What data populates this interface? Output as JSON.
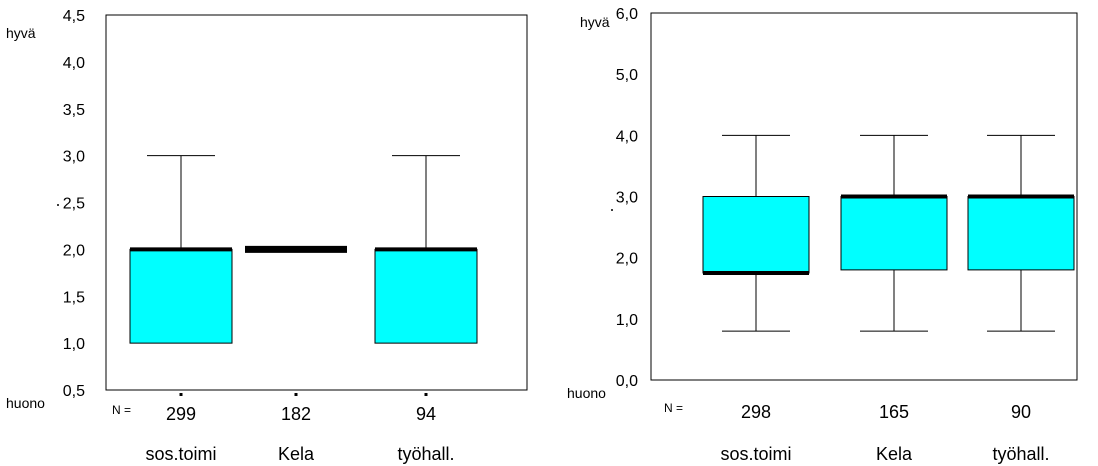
{
  "chart_data": [
    {
      "type": "boxplot",
      "top_label": "hyvä",
      "bottom_label": "huono",
      "n_label": "N =",
      "ylim": [
        0.5,
        4.5
      ],
      "yticks": [
        "0,5",
        "1,0",
        "1,5",
        "2,0",
        "2,5",
        "3,0",
        "3,5",
        "4,0",
        "4,5"
      ],
      "ytick_values": [
        0.5,
        1.0,
        1.5,
        2.0,
        2.5,
        3.0,
        3.5,
        4.0,
        4.5
      ],
      "categories": [
        "sos.toimi",
        "Kela",
        "työhall."
      ],
      "n": [
        "299",
        "182",
        "94"
      ],
      "boxes": [
        {
          "whisker_low": 1.0,
          "q1": 1.0,
          "median": 2.0,
          "q3": 2.0,
          "whisker_high": 3.0
        },
        {
          "whisker_low": 2.0,
          "q1": 2.0,
          "median": 2.0,
          "q3": 2.0,
          "whisker_high": 2.0
        },
        {
          "whisker_low": 1.0,
          "q1": 1.0,
          "median": 2.0,
          "q3": 2.0,
          "whisker_high": 3.0
        }
      ],
      "box_color": "#00ffff"
    },
    {
      "type": "boxplot",
      "top_label": "hyvä",
      "bottom_label": "huono",
      "n_label": "N =",
      "ylim": [
        0.0,
        6.0
      ],
      "yticks": [
        "0,0",
        "1,0",
        "2,0",
        "3,0",
        "4,0",
        "5,0",
        "6,0"
      ],
      "ytick_values": [
        0.0,
        1.0,
        2.0,
        3.0,
        4.0,
        5.0,
        6.0
      ],
      "categories": [
        "sos.toimi",
        "Kela",
        "työhall."
      ],
      "n": [
        "298",
        "165",
        "90"
      ],
      "boxes": [
        {
          "whisker_low": 0.8,
          "q1": 1.75,
          "median": 1.75,
          "q3": 3.0,
          "whisker_high": 4.0
        },
        {
          "whisker_low": 0.8,
          "q1": 1.8,
          "median": 3.0,
          "q3": 3.0,
          "whisker_high": 4.0
        },
        {
          "whisker_low": 0.8,
          "q1": 1.8,
          "median": 3.0,
          "q3": 3.0,
          "whisker_high": 4.0
        }
      ],
      "box_color": "#00ffff"
    }
  ]
}
